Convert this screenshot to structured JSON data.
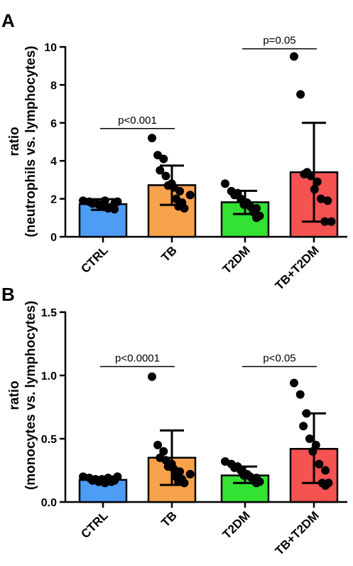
{
  "chart_data": [
    {
      "panel": "A",
      "type": "bar",
      "ylabel_line1": "ratio",
      "ylabel_line2": "(neutrophils vs. lymphocytes)",
      "ylim": [
        0,
        10
      ],
      "yticks": [
        0,
        2,
        4,
        6,
        8,
        10
      ],
      "ytick_labels": [
        "0",
        "2",
        "4",
        "6",
        "8",
        "10"
      ],
      "categories": [
        "CTRL",
        "TB",
        "T2DM",
        "TB+T2DM"
      ],
      "colors": [
        "#4d9cf5",
        "#f8a24b",
        "#33e233",
        "#f55252"
      ],
      "values": [
        1.72,
        2.72,
        1.82,
        3.4
      ],
      "error": [
        [
          1.42,
          1.98
        ],
        [
          1.68,
          3.75
        ],
        [
          1.2,
          2.42
        ],
        [
          0.8,
          6.0
        ]
      ],
      "points": [
        [
          1.9,
          1.85,
          1.8,
          1.75,
          1.7,
          1.9,
          1.6,
          1.5,
          1.45,
          1.55,
          1.85,
          1.75
        ],
        [
          5.2,
          4.3,
          4.1,
          3.5,
          3.2,
          2.8,
          2.7,
          2.6,
          2.4,
          2.0,
          1.8,
          1.6,
          1.5,
          2.2
        ],
        [
          2.8,
          2.4,
          2.3,
          2.2,
          2.0,
          1.8,
          1.7,
          1.6,
          1.5,
          1.3,
          1.1,
          1.0
        ],
        [
          9.5,
          7.5,
          3.4,
          3.3,
          3.2,
          2.9,
          2.5,
          2.0,
          1.9,
          0.8,
          0.8
        ]
      ],
      "significance": [
        {
          "from": 0,
          "to": 1,
          "y": 5.7,
          "label": "p<0.001"
        },
        {
          "from": 2,
          "to": 3,
          "y": 9.9,
          "label": "p=0.05"
        }
      ]
    },
    {
      "panel": "B",
      "type": "bar",
      "ylabel_line1": "ratio",
      "ylabel_line2": "(monocytes vs. lymphocytes)",
      "ylim": [
        0,
        1.5
      ],
      "yticks": [
        0,
        0.5,
        1.0,
        1.5
      ],
      "ytick_labels": [
        "0.0",
        "0.5",
        "1.0",
        "1.5"
      ],
      "categories": [
        "CTRL",
        "TB",
        "T2DM",
        "TB+T2DM"
      ],
      "colors": [
        "#4d9cf5",
        "#f8a24b",
        "#33e233",
        "#f55252"
      ],
      "values": [
        0.175,
        0.35,
        0.21,
        0.42
      ],
      "error": [
        [
          0.15,
          0.195
        ],
        [
          0.135,
          0.565
        ],
        [
          0.15,
          0.28
        ],
        [
          0.15,
          0.7
        ]
      ],
      "points": [
        [
          0.2,
          0.19,
          0.18,
          0.17,
          0.16,
          0.15,
          0.18,
          0.19,
          0.17,
          0.16,
          0.2,
          0.18
        ],
        [
          0.99,
          0.45,
          0.4,
          0.35,
          0.33,
          0.3,
          0.28,
          0.26,
          0.24,
          0.2,
          0.18,
          0.16,
          0.15,
          0.22
        ],
        [
          0.32,
          0.3,
          0.28,
          0.27,
          0.25,
          0.22,
          0.21,
          0.2,
          0.19,
          0.17,
          0.16,
          0.15
        ],
        [
          0.94,
          0.85,
          0.7,
          0.6,
          0.5,
          0.45,
          0.4,
          0.3,
          0.25,
          0.15,
          0.15,
          0.13
        ]
      ],
      "significance": [
        {
          "from": 0,
          "to": 1,
          "y": 1.07,
          "label": "p<0.0001"
        },
        {
          "from": 2,
          "to": 3,
          "y": 1.07,
          "label": "p<0.05"
        }
      ]
    }
  ]
}
